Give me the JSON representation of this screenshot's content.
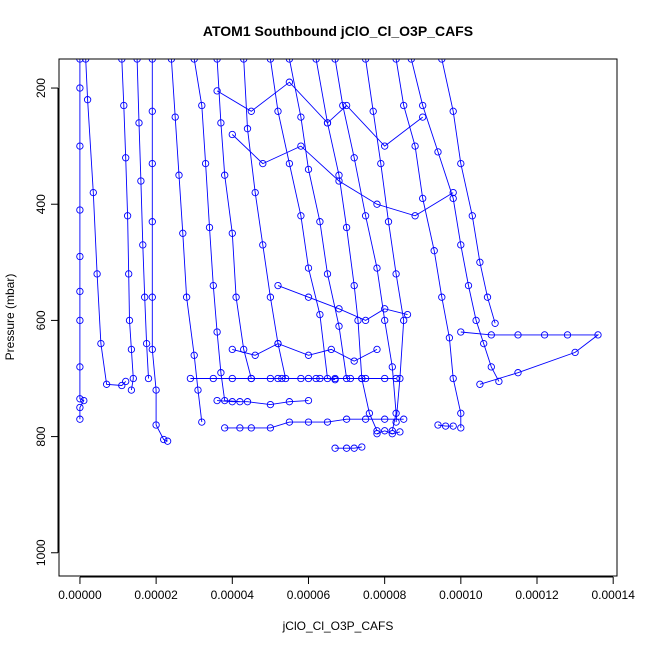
{
  "chart_data": {
    "type": "scatter",
    "title": "ATOM1 Southbound jClO_Cl_O3P_CAFS",
    "xlabel": "jClO_Cl_O3P_CAFS",
    "ylabel": "Pressure (mbar)",
    "xlim": [
      -5.5e-06,
      0.000141
    ],
    "ylim": [
      1040,
      150
    ],
    "y_reversed": true,
    "grid": false,
    "colors": {
      "series": "#0000ff",
      "axis": "#000000"
    },
    "marker": "open-circle",
    "connected": true,
    "x_ticks": [
      {
        "value": 0.0,
        "label": "0.00000"
      },
      {
        "value": 2e-05,
        "label": "0.00002"
      },
      {
        "value": 4e-05,
        "label": "0.00004"
      },
      {
        "value": 6e-05,
        "label": "0.00006"
      },
      {
        "value": 8e-05,
        "label": "0.00008"
      },
      {
        "value": 0.0001,
        "label": "0.00010"
      },
      {
        "value": 0.00012,
        "label": "0.00012"
      },
      {
        "value": 0.00014,
        "label": "0.00014"
      }
    ],
    "y_ticks": [
      {
        "value": 200,
        "label": "200"
      },
      {
        "value": 400,
        "label": "400"
      },
      {
        "value": 600,
        "label": "600"
      },
      {
        "value": 800,
        "label": "800"
      },
      {
        "value": 1000,
        "label": "1000"
      }
    ],
    "series": [
      {
        "points": [
          [
            0.0,
            150
          ],
          [
            0.0,
            200
          ],
          [
            0.0,
            300
          ],
          [
            0.0,
            410
          ],
          [
            0.0,
            490
          ],
          [
            0.0,
            550
          ],
          [
            0.0,
            600
          ],
          [
            0.0,
            680
          ],
          [
            0.0,
            735
          ],
          [
            1e-06,
            738
          ],
          [
            0.0,
            750
          ],
          [
            0.0,
            770
          ]
        ]
      },
      {
        "points": [
          [
            1.5e-06,
            150
          ],
          [
            2e-06,
            220
          ],
          [
            3.5e-06,
            380
          ],
          [
            4.5e-06,
            520
          ],
          [
            5.5e-06,
            640
          ],
          [
            7e-06,
            710
          ],
          [
            1.1e-05,
            712
          ],
          [
            1.2e-05,
            705
          ]
        ]
      },
      {
        "points": [
          [
            1.1e-05,
            150
          ],
          [
            1.15e-05,
            230
          ],
          [
            1.2e-05,
            320
          ],
          [
            1.25e-05,
            420
          ],
          [
            1.28e-05,
            520
          ],
          [
            1.3e-05,
            600
          ],
          [
            1.35e-05,
            650
          ],
          [
            1.4e-05,
            700
          ],
          [
            1.35e-05,
            720
          ]
        ]
      },
      {
        "points": [
          [
            1.5e-05,
            150
          ],
          [
            1.55e-05,
            260
          ],
          [
            1.6e-05,
            360
          ],
          [
            1.65e-05,
            470
          ],
          [
            1.7e-05,
            560
          ],
          [
            1.75e-05,
            640
          ],
          [
            1.8e-05,
            700
          ]
        ]
      },
      {
        "points": [
          [
            1.9e-05,
            150
          ],
          [
            1.9e-05,
            240
          ],
          [
            1.9e-05,
            330
          ],
          [
            1.9e-05,
            430
          ],
          [
            1.9e-05,
            560
          ],
          [
            1.9e-05,
            650
          ],
          [
            2e-05,
            720
          ],
          [
            2e-05,
            780
          ],
          [
            2.2e-05,
            805
          ],
          [
            2.3e-05,
            808
          ]
        ]
      },
      {
        "points": [
          [
            2.4e-05,
            150
          ],
          [
            2.5e-05,
            250
          ],
          [
            2.6e-05,
            350
          ],
          [
            2.7e-05,
            450
          ],
          [
            2.8e-05,
            560
          ],
          [
            3e-05,
            660
          ],
          [
            3.1e-05,
            720
          ],
          [
            3.2e-05,
            775
          ]
        ]
      },
      {
        "points": [
          [
            3e-05,
            150
          ],
          [
            3.2e-05,
            230
          ],
          [
            3.3e-05,
            330
          ],
          [
            3.4e-05,
            440
          ],
          [
            3.5e-05,
            540
          ],
          [
            3.6e-05,
            620
          ],
          [
            3.7e-05,
            690
          ],
          [
            3.8e-05,
            738
          ],
          [
            4.2e-05,
            740
          ]
        ]
      },
      {
        "points": [
          [
            3.6e-05,
            150
          ],
          [
            3.7e-05,
            260
          ],
          [
            3.8e-05,
            350
          ],
          [
            4e-05,
            450
          ],
          [
            4.1e-05,
            560
          ],
          [
            4.3e-05,
            650
          ],
          [
            4.5e-05,
            700
          ],
          [
            5e-05,
            700
          ],
          [
            5.3e-05,
            700
          ]
        ]
      },
      {
        "points": [
          [
            4.3e-05,
            150
          ],
          [
            4.4e-05,
            270
          ],
          [
            4.6e-05,
            380
          ],
          [
            4.8e-05,
            470
          ],
          [
            5e-05,
            560
          ],
          [
            5.2e-05,
            640
          ],
          [
            5.4e-05,
            700
          ],
          [
            6e-05,
            700
          ],
          [
            6.2e-05,
            700
          ]
        ]
      },
      {
        "points": [
          [
            5e-05,
            150
          ],
          [
            5.2e-05,
            240
          ],
          [
            5.5e-05,
            330
          ],
          [
            5.8e-05,
            420
          ],
          [
            6e-05,
            510
          ],
          [
            6.3e-05,
            590
          ],
          [
            6.5e-05,
            700
          ],
          [
            6.7e-05,
            702
          ]
        ]
      },
      {
        "points": [
          [
            5.5e-05,
            150
          ],
          [
            5.8e-05,
            250
          ],
          [
            6e-05,
            340
          ],
          [
            6.3e-05,
            430
          ],
          [
            6.5e-05,
            520
          ],
          [
            6.8e-05,
            610
          ],
          [
            7e-05,
            700
          ],
          [
            7.4e-05,
            700
          ]
        ]
      },
      {
        "points": [
          [
            6.2e-05,
            150
          ],
          [
            6.5e-05,
            260
          ],
          [
            6.8e-05,
            350
          ],
          [
            7e-05,
            440
          ],
          [
            7.2e-05,
            540
          ],
          [
            7.3e-05,
            600
          ],
          [
            7.4e-05,
            700
          ],
          [
            7.6e-05,
            760
          ],
          [
            7.8e-05,
            790
          ]
        ]
      },
      {
        "points": [
          [
            6.7e-05,
            150
          ],
          [
            6.9e-05,
            230
          ],
          [
            7.2e-05,
            320
          ],
          [
            7.5e-05,
            420
          ],
          [
            7.8e-05,
            510
          ],
          [
            8e-05,
            600
          ],
          [
            8.2e-05,
            680
          ],
          [
            8.3e-05,
            760
          ],
          [
            8.2e-05,
            790
          ]
        ]
      },
      {
        "points": [
          [
            7.5e-05,
            150
          ],
          [
            7.7e-05,
            240
          ],
          [
            7.9e-05,
            330
          ],
          [
            8.1e-05,
            430
          ],
          [
            8.3e-05,
            520
          ],
          [
            8.5e-05,
            600
          ],
          [
            8.4e-05,
            700
          ],
          [
            8.3e-05,
            775
          ]
        ]
      },
      {
        "points": [
          [
            8.3e-05,
            150
          ],
          [
            8.5e-05,
            230
          ],
          [
            8.8e-05,
            300
          ],
          [
            9e-05,
            390
          ],
          [
            9.3e-05,
            480
          ],
          [
            9.5e-05,
            560
          ],
          [
            9.7e-05,
            630
          ],
          [
            9.8e-05,
            700
          ],
          [
            0.0001,
            760
          ],
          [
            0.0001,
            785
          ]
        ]
      },
      {
        "points": [
          [
            8.7e-05,
            150
          ],
          [
            9e-05,
            230
          ],
          [
            9.4e-05,
            310
          ],
          [
            9.8e-05,
            390
          ],
          [
            0.0001,
            470
          ],
          [
            0.000102,
            540
          ],
          [
            0.000104,
            600
          ],
          [
            0.000106,
            640
          ],
          [
            0.000108,
            680
          ],
          [
            0.00011,
            705
          ]
        ]
      },
      {
        "points": [
          [
            9.5e-05,
            150
          ],
          [
            9.8e-05,
            240
          ],
          [
            0.0001,
            330
          ],
          [
            0.000103,
            420
          ],
          [
            0.000105,
            500
          ],
          [
            0.000107,
            560
          ],
          [
            0.000109,
            605
          ]
        ]
      },
      {
        "points": [
          [
            0.0001,
            620
          ],
          [
            0.000108,
            625
          ],
          [
            0.000115,
            625
          ],
          [
            0.000122,
            625
          ],
          [
            0.000128,
            625
          ],
          [
            0.000136,
            625
          ],
          [
            0.00013,
            655
          ],
          [
            0.000115,
            690
          ],
          [
            0.000105,
            710
          ]
        ]
      },
      {
        "points": [
          [
            2.9e-05,
            700
          ],
          [
            3.5e-05,
            700
          ],
          [
            4e-05,
            700
          ],
          [
            4.5e-05,
            700
          ],
          [
            5.2e-05,
            700
          ],
          [
            5.8e-05,
            700
          ],
          [
            6.3e-05,
            700
          ],
          [
            6.7e-05,
            700
          ],
          [
            7.1e-05,
            700
          ],
          [
            7.5e-05,
            700
          ],
          [
            8e-05,
            700
          ],
          [
            8.3e-05,
            700
          ]
        ]
      },
      {
        "points": [
          [
            3.6e-05,
            738
          ],
          [
            4e-05,
            740
          ],
          [
            4.4e-05,
            740
          ],
          [
            5e-05,
            745
          ],
          [
            5.5e-05,
            740
          ],
          [
            6e-05,
            738
          ]
        ]
      },
      {
        "points": [
          [
            3.8e-05,
            785
          ],
          [
            4.2e-05,
            785
          ],
          [
            4.5e-05,
            785
          ],
          [
            5e-05,
            785
          ],
          [
            5.5e-05,
            775
          ],
          [
            6e-05,
            775
          ],
          [
            6.5e-05,
            775
          ],
          [
            7e-05,
            770
          ],
          [
            7.5e-05,
            770
          ],
          [
            8e-05,
            770
          ],
          [
            8.5e-05,
            770
          ]
        ]
      },
      {
        "points": [
          [
            6.7e-05,
            820
          ],
          [
            7e-05,
            820
          ],
          [
            7.2e-05,
            820
          ],
          [
            7.4e-05,
            818
          ]
        ]
      },
      {
        "points": [
          [
            9.4e-05,
            780
          ],
          [
            9.6e-05,
            782
          ],
          [
            9.8e-05,
            782
          ]
        ]
      },
      {
        "points": [
          [
            7.8e-05,
            795
          ],
          [
            8e-05,
            790
          ],
          [
            8.2e-05,
            795
          ],
          [
            8.4e-05,
            792
          ]
        ]
      },
      {
        "points": [
          [
            3.6e-05,
            205
          ],
          [
            4.5e-05,
            240
          ],
          [
            5.5e-05,
            190
          ],
          [
            6.5e-05,
            260
          ],
          [
            7e-05,
            230
          ],
          [
            8e-05,
            300
          ],
          [
            9e-05,
            250
          ]
        ]
      },
      {
        "points": [
          [
            4e-05,
            280
          ],
          [
            4.8e-05,
            330
          ],
          [
            5.8e-05,
            300
          ],
          [
            6.8e-05,
            360
          ],
          [
            7.8e-05,
            400
          ],
          [
            8.8e-05,
            420
          ],
          [
            9.8e-05,
            380
          ]
        ]
      },
      {
        "points": [
          [
            5.2e-05,
            540
          ],
          [
            6e-05,
            560
          ],
          [
            6.8e-05,
            580
          ],
          [
            7.5e-05,
            600
          ],
          [
            8e-05,
            580
          ],
          [
            8.6e-05,
            590
          ]
        ]
      },
      {
        "points": [
          [
            4e-05,
            650
          ],
          [
            4.6e-05,
            660
          ],
          [
            5.2e-05,
            640
          ],
          [
            6e-05,
            660
          ],
          [
            6.6e-05,
            650
          ],
          [
            7.2e-05,
            670
          ],
          [
            7.8e-05,
            650
          ]
        ]
      }
    ]
  }
}
